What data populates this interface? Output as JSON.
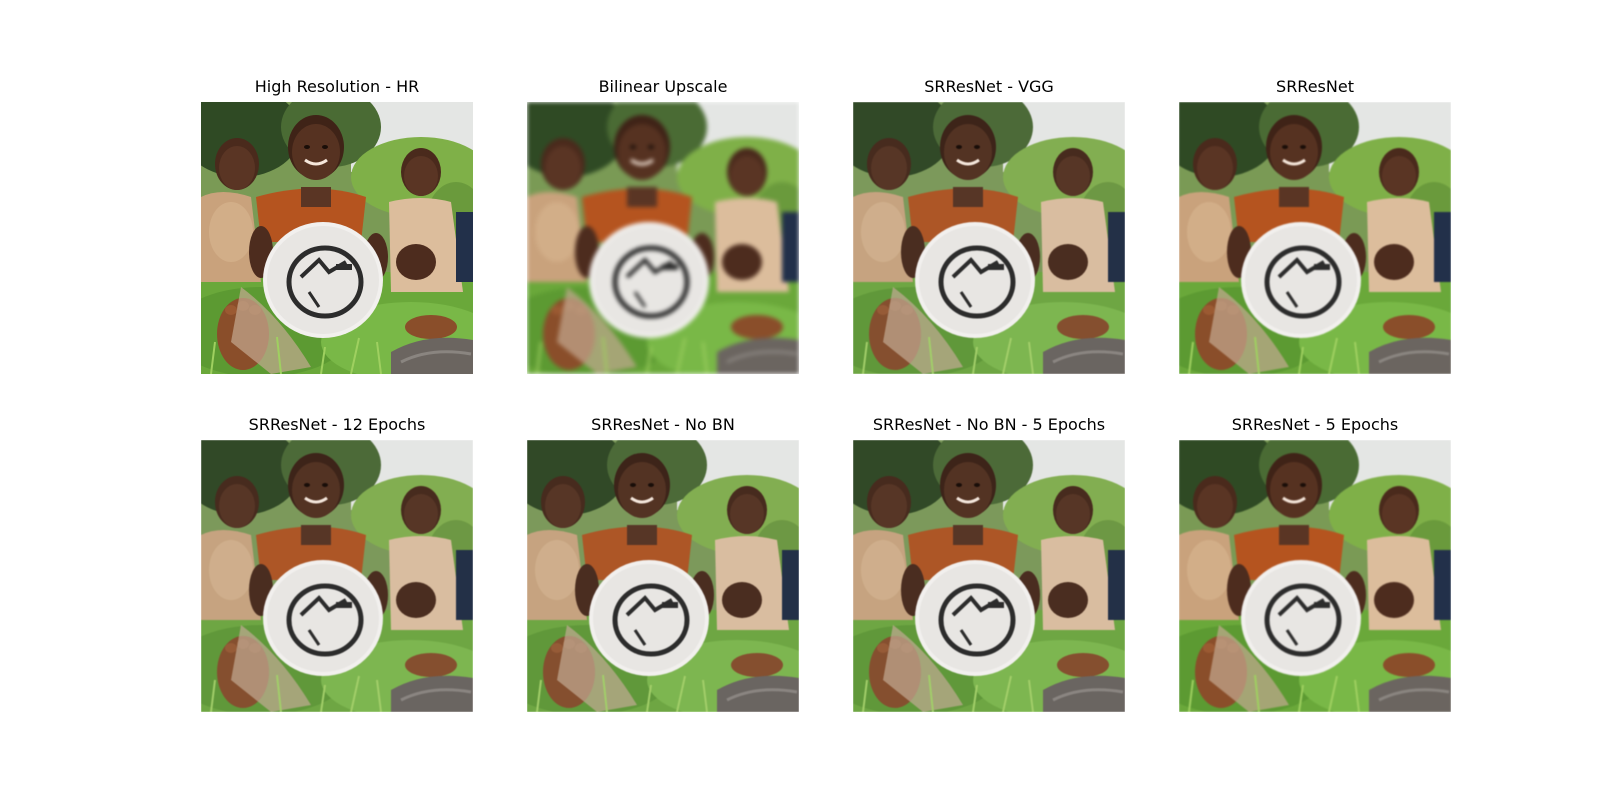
{
  "panels": [
    {
      "title": "High Resolution - HR"
    },
    {
      "title": "Bilinear Upscale"
    },
    {
      "title": "SRResNet - VGG"
    },
    {
      "title": "SRResNet"
    },
    {
      "title": "SRResNet - 12 Epochs"
    },
    {
      "title": "SRResNet - No BN"
    },
    {
      "title": "SRResNet - No BN - 5 Epochs"
    },
    {
      "title": "SRResNet - 5 Epochs"
    }
  ],
  "colors": {
    "sky": "#e8e8ee",
    "foliage": "#5d8a3a",
    "grass": "#6fae3e",
    "skin": "#5a3524",
    "shirt_orange": "#b5541f",
    "dress_beige": "#d8b896",
    "frisbee": "#f2f0ee",
    "frisbee_ring": "#2c2c2c"
  }
}
